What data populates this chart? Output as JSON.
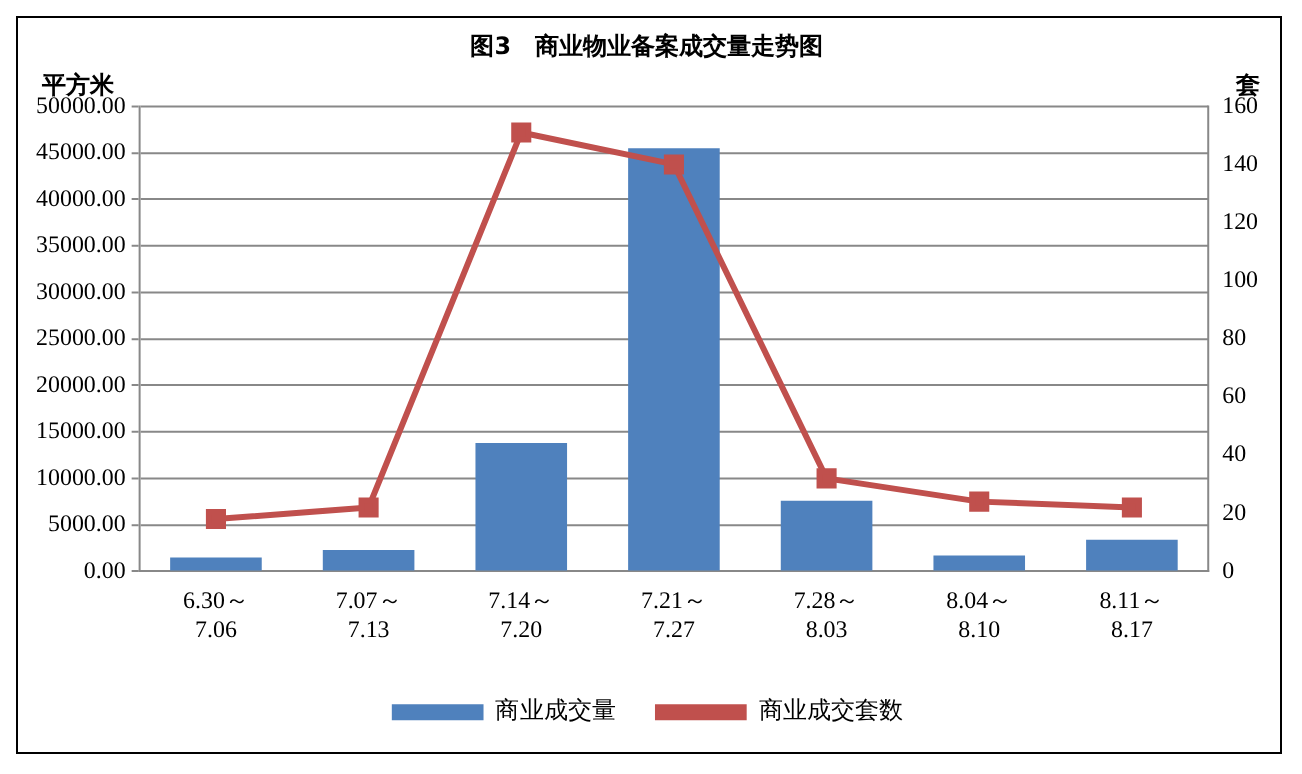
{
  "chart_data": {
    "type": "bar",
    "title": "图3　商业物业备案成交量走势图",
    "ylabel": "平方米",
    "y2label": "套",
    "categories": [
      "6.30～\n7.06",
      "7.07～\n7.13",
      "7.14～\n7.20",
      "7.21～\n7.27",
      "7.28～\n8.03",
      "8.04～\n8.10",
      "8.11～\n8.17"
    ],
    "series": [
      {
        "name": "商业成交量",
        "color": "#4f81bd",
        "values": [
          1500,
          2300,
          13800,
          45500,
          7600,
          1700,
          3400
        ]
      },
      {
        "name": "商业成交套数",
        "type": "line",
        "axis": "y2",
        "color": "#c0504d",
        "marker": "square",
        "values": [
          18,
          22,
          151,
          140,
          32,
          24,
          22
        ]
      }
    ],
    "ylim": [
      0,
      50000
    ],
    "yticks": [
      {
        "value": 0,
        "label": "0.00"
      },
      {
        "value": 5000,
        "label": "5000.00"
      },
      {
        "value": 10000,
        "label": "10000.00"
      },
      {
        "value": 15000,
        "label": "15000.00"
      },
      {
        "value": 20000,
        "label": "20000.00"
      },
      {
        "value": 25000,
        "label": "25000.00"
      },
      {
        "value": 30000,
        "label": "30000.00"
      },
      {
        "value": 35000,
        "label": "35000.00"
      },
      {
        "value": 40000,
        "label": "40000.00"
      },
      {
        "value": 45000,
        "label": "45000.00"
      },
      {
        "value": 50000,
        "label": "50000.00"
      }
    ],
    "y2lim": [
      0,
      160
    ],
    "y2ticks": [
      0,
      20,
      40,
      60,
      80,
      100,
      120,
      140,
      160
    ],
    "grid": "y",
    "legend": "bottom"
  }
}
